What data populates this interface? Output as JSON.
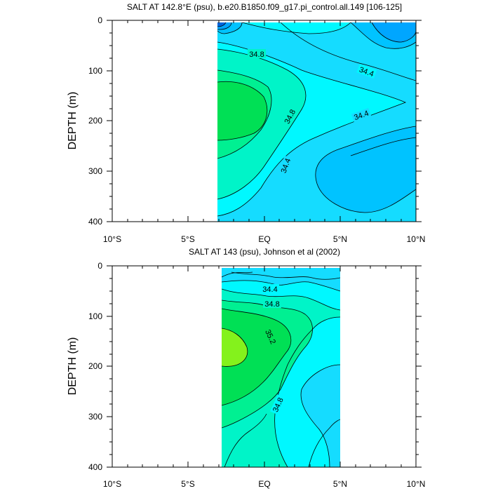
{
  "chart_data": [
    {
      "type": "contour",
      "title": "SALT AT 142.8°E (psu), b.e20.B1850.f09_g17.pi_control.all.149 [106-125]",
      "ylabel": "DEPTH (m)",
      "x_ticks": [
        "10°S",
        "5°S",
        "EQ",
        "5°N",
        "10°N"
      ],
      "y_ticks": [
        "0",
        "100",
        "200",
        "300",
        "400"
      ],
      "xlim": [
        -10,
        10
      ],
      "ylim": [
        400,
        0
      ],
      "data_x_extent": [
        -3,
        10
      ],
      "contour_labels": [
        "34.8",
        "34.4",
        "34.8",
        "34.4",
        "34.4"
      ],
      "colors": [
        "#00a6ff",
        "#00c3ff",
        "#15dcff",
        "#00f8ff",
        "#00f4c8",
        "#00f092",
        "#00e055",
        "#84f21c"
      ]
    },
    {
      "type": "contour",
      "title": "SALT AT 143 (psu), Johnson et al (2002)",
      "ylabel": "DEPTH (m)",
      "x_ticks": [
        "10°S",
        "5°S",
        "EQ",
        "5°N",
        "10°N"
      ],
      "y_ticks": [
        "0",
        "100",
        "200",
        "300",
        "400"
      ],
      "xlim": [
        -10,
        10
      ],
      "ylim": [
        400,
        0
      ],
      "data_x_extent": [
        -2.8,
        5
      ],
      "contour_labels": [
        "34.4",
        "34.8",
        "35.2",
        "34.8"
      ],
      "colors": [
        "#00a6ff",
        "#00c3ff",
        "#15dcff",
        "#00f8ff",
        "#00f4c8",
        "#00f092",
        "#00e055",
        "#84f21c"
      ]
    }
  ]
}
